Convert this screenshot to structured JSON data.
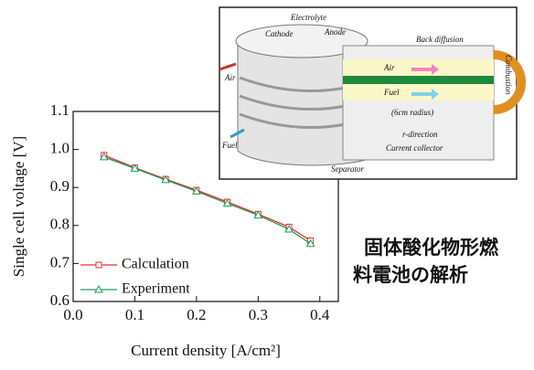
{
  "chart_data": {
    "type": "line",
    "xlabel": "Current density [A/cm²]",
    "ylabel": "Single cell voltage [V]",
    "x": [
      0.05,
      0.1,
      0.15,
      0.2,
      0.25,
      0.3,
      0.35,
      0.385
    ],
    "series": [
      {
        "name": "Calculation",
        "color": "#e8302c",
        "marker": "square",
        "values": [
          0.985,
          0.952,
          0.922,
          0.893,
          0.862,
          0.83,
          0.796,
          0.76
        ]
      },
      {
        "name": "Experiment",
        "color": "#1f9a5a",
        "marker": "triangle",
        "values": [
          0.98,
          0.95,
          0.92,
          0.89,
          0.858,
          0.827,
          0.79,
          0.752
        ]
      }
    ],
    "xlim": [
      0,
      0.43
    ],
    "xticks": [
      {
        "value": 0,
        "label": "0.0"
      },
      0.1,
      0.2,
      0.3,
      0.4
    ],
    "ylim": [
      0.6,
      1.1
    ],
    "yticks": [
      0.6,
      0.7,
      0.8,
      0.9,
      {
        "value": 1,
        "label": "1.0"
      },
      1.1
    ],
    "legend": "lower left"
  },
  "inset": {
    "labels": [
      "Electrolyte",
      "Cathode",
      "Anode",
      "Back diffusion",
      "Air",
      "Fuel",
      "(6cm radius)",
      "r-direction",
      "Current collector",
      "Separator",
      "Combustion",
      "Air",
      "Fuel"
    ]
  },
  "caption": {
    "lines": [
      "固体酸化物形燃",
      "料電池の解析"
    ]
  }
}
